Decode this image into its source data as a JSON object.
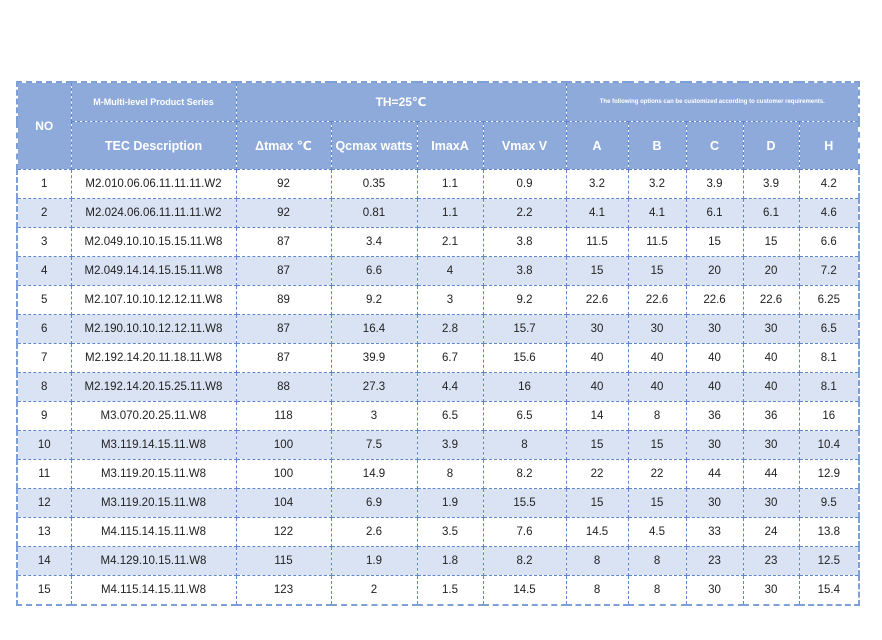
{
  "table": {
    "header": {
      "no": "NO",
      "series": "M-Multi-level Product Series",
      "condition": "TH=25℃",
      "options": "The following options can be customized according to customer requirements.",
      "columns": [
        "TEC Description",
        "Δtmax ℃",
        "Qcmax watts",
        "ImaxA",
        "Vmax V",
        "A",
        "B",
        "C",
        "D",
        "H"
      ]
    },
    "rows": [
      [
        "1",
        "M2.010.06.06.11.11.11.W2",
        "92",
        "0.35",
        "1.1",
        "0.9",
        "3.2",
        "3.2",
        "3.9",
        "3.9",
        "4.2"
      ],
      [
        "2",
        "M2.024.06.06.11.11.11.W2",
        "92",
        "0.81",
        "1.1",
        "2.2",
        "4.1",
        "4.1",
        "6.1",
        "6.1",
        "4.6"
      ],
      [
        "3",
        "M2.049.10.10.15.15.11.W8",
        "87",
        "3.4",
        "2.1",
        "3.8",
        "11.5",
        "11.5",
        "15",
        "15",
        "6.6"
      ],
      [
        "4",
        "M2.049.14.14.15.15.11.W8",
        "87",
        "6.6",
        "4",
        "3.8",
        "15",
        "15",
        "20",
        "20",
        "7.2"
      ],
      [
        "5",
        "M2.107.10.10.12.12.11.W8",
        "89",
        "9.2",
        "3",
        "9.2",
        "22.6",
        "22.6",
        "22.6",
        "22.6",
        "6.25"
      ],
      [
        "6",
        "M2.190.10.10.12.12.11.W8",
        "87",
        "16.4",
        "2.8",
        "15.7",
        "30",
        "30",
        "30",
        "30",
        "6.5"
      ],
      [
        "7",
        "M2.192.14.20.11.18.11.W8",
        "87",
        "39.9",
        "6.7",
        "15.6",
        "40",
        "40",
        "40",
        "40",
        "8.1"
      ],
      [
        "8",
        "M2.192.14.20.15.25.11.W8",
        "88",
        "27.3",
        "4.4",
        "16",
        "40",
        "40",
        "40",
        "40",
        "8.1"
      ],
      [
        "9",
        "M3.070.20.25.11.W8",
        "118",
        "3",
        "6.5",
        "6.5",
        "14",
        "8",
        "36",
        "36",
        "16"
      ],
      [
        "10",
        "M3.119.14.15.11.W8",
        "100",
        "7.5",
        "3.9",
        "8",
        "15",
        "15",
        "30",
        "30",
        "10.4"
      ],
      [
        "11",
        "M3.119.20.15.11.W8",
        "100",
        "14.9",
        "8",
        "8.2",
        "22",
        "22",
        "44",
        "44",
        "12.9"
      ],
      [
        "12",
        "M3.119.20.15.11.W8",
        "104",
        "6.9",
        "1.9",
        "15.5",
        "15",
        "15",
        "30",
        "30",
        "9.5"
      ],
      [
        "13",
        "M4.115.14.15.11.W8",
        "122",
        "2.6",
        "3.5",
        "7.6",
        "14.5",
        "4.5",
        "33",
        "24",
        "13.8"
      ],
      [
        "14",
        "M4.129.10.15.11.W8",
        "115",
        "1.9",
        "1.8",
        "8.2",
        "8",
        "8",
        "23",
        "23",
        "12.5"
      ],
      [
        "15",
        "M4.115.14.15.11.W8",
        "123",
        "2",
        "1.5",
        "14.5",
        "8",
        "8",
        "30",
        "30",
        "15.4"
      ]
    ]
  }
}
